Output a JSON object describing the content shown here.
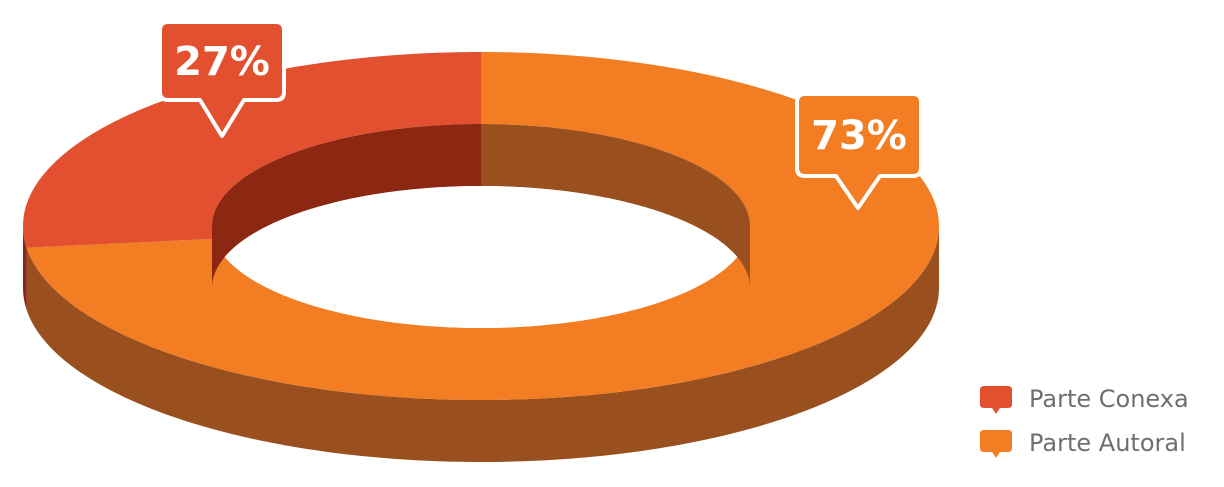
{
  "chart_data": {
    "type": "pie",
    "variant": "3d-donut",
    "categories": [
      "Parte Conexa",
      "Parte Autoral"
    ],
    "values": [
      27,
      73
    ],
    "data_labels": [
      "27%",
      "73%"
    ],
    "colors": {
      "Parte Conexa": "#e2502f",
      "Parte Autoral": "#f27d23"
    },
    "side_colors": {
      "Parte Conexa": "#8c2812",
      "Parte Autoral": "#9a501e"
    },
    "legend": {
      "position": "bottom-right",
      "items": [
        "Parte Conexa",
        "Parte Autoral"
      ]
    }
  }
}
